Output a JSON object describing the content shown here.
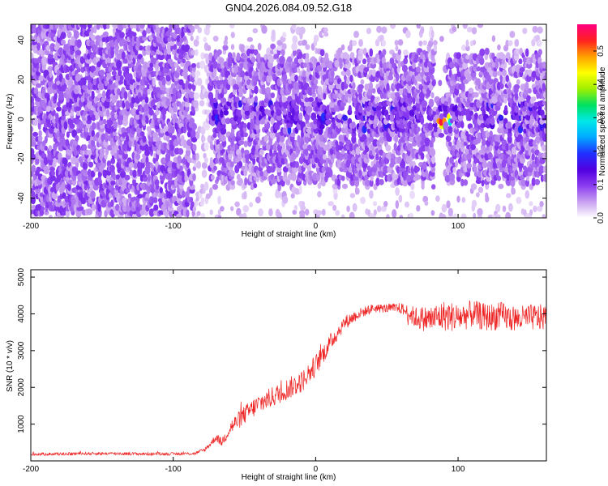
{
  "title": "GN04.2026.084.09.52.G18",
  "chart_data": [
    {
      "type": "heatmap",
      "xlabel": "Height of straight line (km)",
      "ylabel": "Frequency (Hz)",
      "xlim": [
        -200,
        162
      ],
      "ylim": [
        -50,
        48
      ],
      "xticks": [
        -200,
        -100,
        0,
        100
      ],
      "yticks": [
        -40,
        -20,
        0,
        20,
        40
      ],
      "colorbar": {
        "label": "Normalized spectral amplitude",
        "range": [
          0.0,
          0.58
        ],
        "ticks": [
          "0.0",
          "0.1",
          "0.2",
          "0.3",
          "0.4",
          "0.5"
        ],
        "tick_values": [
          0.0,
          0.1,
          0.2,
          0.3,
          0.4,
          0.5
        ],
        "colors": [
          "#ffffff",
          "#c8a0f0",
          "#8a3cf0",
          "#5000e0",
          "#2030ff",
          "#00aaff",
          "#00e8e8",
          "#00e060",
          "#a0f000",
          "#ffff00",
          "#ffa000",
          "#ff2020",
          "#ff0080"
        ]
      },
      "regions": [
        {
          "x": [
            -200,
            -85
          ],
          "band_hz": 48,
          "level": "dense purple, ~0.05-0.10"
        },
        {
          "x": [
            -85,
            -75
          ],
          "band_hz": 48,
          "level": "sparse light purple, ~0.02"
        },
        {
          "x": [
            -75,
            162
          ],
          "band_hz": 30,
          "level": "purple, ~0.05-0.12; blue/cyan spots near 0 Hz"
        }
      ],
      "hotspots": [
        {
          "x": 88,
          "y": -2,
          "value": 0.55
        },
        {
          "x": 92,
          "y": 0,
          "value": 0.45
        },
        {
          "x": -70,
          "y": 0,
          "value": 0.2
        },
        {
          "x": 5,
          "y": 0,
          "value": 0.2
        }
      ],
      "gaps": [
        {
          "x": [
            83,
            92
          ],
          "note": "near-empty vertical stripe outside +/-10 Hz"
        }
      ]
    },
    {
      "type": "line",
      "xlabel": "Height of straight line (km)",
      "ylabel": "SNR (10 * v/v)",
      "xlim": [
        -200,
        162
      ],
      "ylim": [
        0,
        5200
      ],
      "xticks": [
        -200,
        -100,
        0,
        100
      ],
      "yticks": [
        1000,
        2000,
        3000,
        4000,
        5000
      ],
      "color": "#ee2222",
      "series": [
        {
          "name": "SNR",
          "x": [
            -200,
            -180,
            -160,
            -140,
            -120,
            -100,
            -85,
            -78,
            -73,
            -70,
            -66,
            -60,
            -50,
            -40,
            -30,
            -20,
            -10,
            0,
            10,
            20,
            30,
            40,
            50,
            60,
            70,
            80,
            90,
            100,
            110,
            120,
            130,
            140,
            150,
            162
          ],
          "y": [
            180,
            190,
            200,
            200,
            190,
            190,
            200,
            300,
            500,
            650,
            500,
            900,
            1250,
            1550,
            1750,
            1950,
            2150,
            2600,
            3200,
            3750,
            4000,
            4150,
            4150,
            4150,
            3900,
            3850,
            3950,
            3900,
            4000,
            3900,
            3950,
            3850,
            3900,
            3900
          ],
          "noise": [
            40,
            40,
            40,
            45,
            40,
            40,
            40,
            60,
            90,
            110,
            120,
            220,
            260,
            280,
            280,
            300,
            300,
            300,
            250,
            200,
            150,
            120,
            120,
            150,
            300,
            380,
            420,
            400,
            380,
            380,
            380,
            360,
            360,
            360
          ]
        }
      ]
    }
  ]
}
